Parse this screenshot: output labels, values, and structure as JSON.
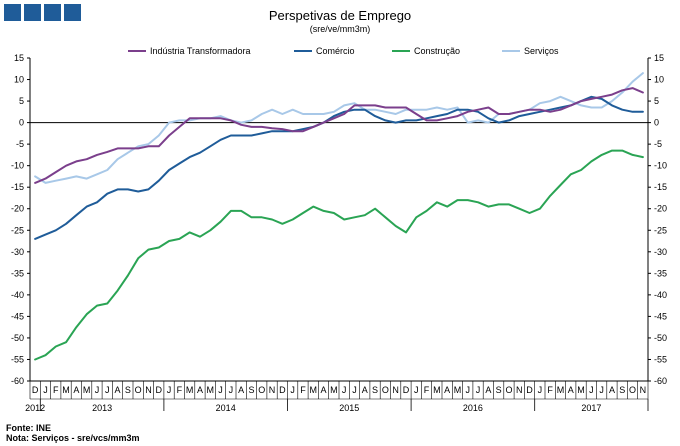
{
  "header": {
    "title": "Perspetivas de Emprego",
    "subtitle": "(sre/ve/mm3m)"
  },
  "colors": {
    "logo": "#1f5c99",
    "axis": "#000000"
  },
  "footer": {
    "source": "Fonte: INE",
    "note": "Nota: Serviços - sre/vcs/mm3m"
  },
  "chart_data": {
    "type": "line",
    "title": "Perspetivas de Emprego",
    "subtitle": "(sre/ve/mm3m)",
    "ylim": [
      -60,
      15
    ],
    "yticks": [
      15,
      10,
      5,
      0,
      -5,
      -10,
      -15,
      -20,
      -25,
      -30,
      -35,
      -40,
      -45,
      -50,
      -55,
      -60
    ],
    "y_axis_both_sides": true,
    "grid": false,
    "legend_position": "top",
    "month_labels": [
      "D",
      "J",
      "F",
      "M",
      "A",
      "M",
      "J",
      "J",
      "A",
      "S",
      "O",
      "N",
      "D",
      "J",
      "F",
      "M",
      "A",
      "M",
      "J",
      "J",
      "A",
      "S",
      "O",
      "N",
      "D",
      "J",
      "F",
      "M",
      "A",
      "M",
      "J",
      "J",
      "A",
      "S",
      "O",
      "N",
      "D",
      "J",
      "F",
      "M",
      "A",
      "M",
      "J",
      "J",
      "A",
      "S",
      "O",
      "N",
      "D",
      "J",
      "F",
      "M",
      "A",
      "M",
      "J",
      "J",
      "A",
      "S",
      "O",
      "N"
    ],
    "years": [
      {
        "label": "2012",
        "start": 0,
        "end": 0
      },
      {
        "label": "2013",
        "start": 1,
        "end": 12
      },
      {
        "label": "2014",
        "start": 13,
        "end": 24
      },
      {
        "label": "2015",
        "start": 25,
        "end": 36
      },
      {
        "label": "2016",
        "start": 37,
        "end": 48
      },
      {
        "label": "2017",
        "start": 49,
        "end": 59
      }
    ],
    "series": [
      {
        "name": "Indústria Transformadora",
        "color": "#7b3f8c",
        "values": [
          -14,
          -13,
          -11.5,
          -10,
          -9,
          -8.5,
          -7.5,
          -6.8,
          -6,
          -6,
          -6,
          -5.5,
          -5.5,
          -3,
          -1,
          1,
          1,
          1,
          1,
          0.5,
          -0.5,
          -1,
          -1,
          -1.3,
          -1.5,
          -2,
          -2,
          -1,
          0,
          1,
          2,
          4,
          4,
          4,
          3.5,
          3.5,
          3.5,
          2,
          0.5,
          0.5,
          1,
          1.5,
          2.5,
          3,
          3.5,
          2,
          2,
          2.5,
          3,
          3,
          2.5,
          3,
          4,
          5,
          5.5,
          6,
          6.5,
          7.5,
          8,
          7
        ]
      },
      {
        "name": "Comércio",
        "color": "#1f5c99",
        "values": [
          -27,
          -26,
          -25,
          -23.5,
          -21.5,
          -19.5,
          -18.5,
          -16.5,
          -15.5,
          -15.5,
          -16,
          -15.5,
          -13.5,
          -11,
          -9.5,
          -8,
          -7,
          -5.5,
          -4,
          -3,
          -3,
          -3,
          -2.5,
          -2,
          -2,
          -2,
          -1.5,
          -1,
          0,
          1.5,
          2.5,
          3,
          3,
          1.5,
          0.5,
          0,
          0.5,
          0.5,
          1,
          1.5,
          2,
          3,
          3,
          2.5,
          1,
          0,
          0.5,
          1.5,
          2,
          2.5,
          3,
          3.5,
          4,
          5,
          6,
          5.5,
          4,
          3,
          2.5,
          2.5
        ]
      },
      {
        "name": "Construção",
        "color": "#2aa454",
        "values": [
          -55,
          -54,
          -52,
          -51,
          -47.5,
          -44.5,
          -42.5,
          -42,
          -39,
          -35.5,
          -31.5,
          -29.5,
          -29,
          -27.5,
          -27,
          -25.5,
          -26.5,
          -25,
          -23,
          -20.5,
          -20.5,
          -22,
          -22,
          -22.5,
          -23.5,
          -22.5,
          -21,
          -19.5,
          -20.5,
          -21,
          -22.5,
          -22,
          -21.5,
          -20,
          -22,
          -24,
          -25.5,
          -22,
          -20.5,
          -18.5,
          -19.5,
          -18,
          -18,
          -18.5,
          -19.5,
          -19,
          -19,
          -20,
          -21,
          -20,
          -17,
          -14.5,
          -12,
          -11,
          -9,
          -7.5,
          -6.5,
          -6.5,
          -7.5,
          -8
        ]
      },
      {
        "name": "Serviços",
        "color": "#a8c8e8",
        "values": [
          -12.5,
          -14,
          -13.5,
          -13,
          -12.5,
          -13,
          -12,
          -11,
          -8.5,
          -7,
          -5.5,
          -5,
          -3,
          0,
          0.5,
          0.5,
          1,
          1,
          1.5,
          0.5,
          0,
          0.5,
          2,
          3,
          2,
          3,
          2,
          2,
          2,
          2.5,
          4,
          4.5,
          3,
          3,
          2.5,
          2,
          3,
          3,
          3,
          3.5,
          3,
          3.5,
          0,
          0.5,
          0,
          2,
          2,
          2.5,
          3,
          4.5,
          5,
          6,
          5,
          4,
          3.5,
          3.5,
          5,
          7,
          9.5,
          11.5
        ]
      }
    ]
  }
}
